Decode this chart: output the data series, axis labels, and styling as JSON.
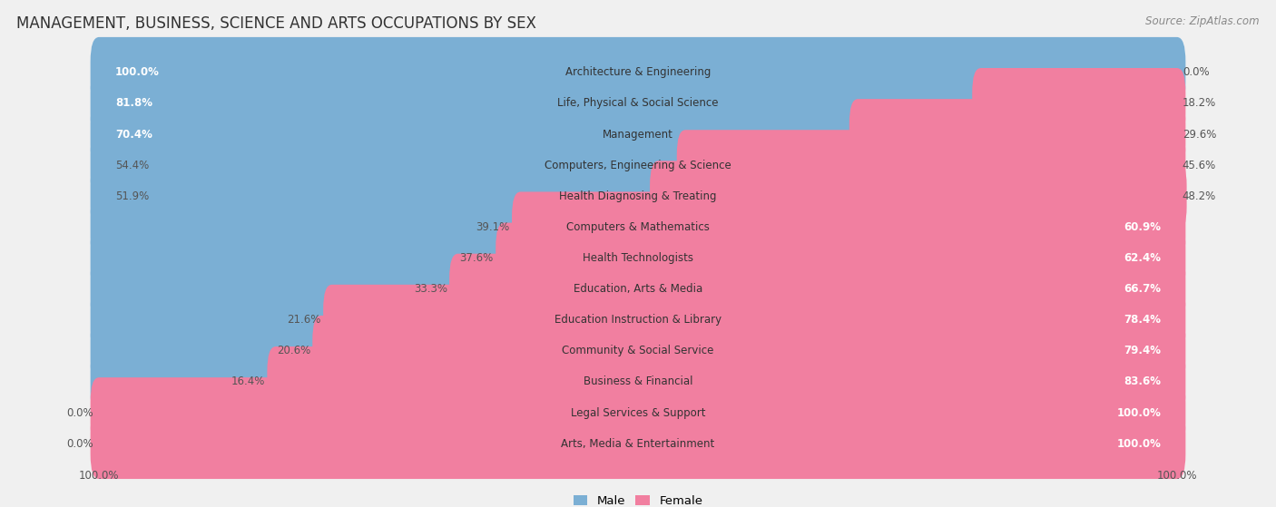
{
  "title": "MANAGEMENT, BUSINESS, SCIENCE AND ARTS OCCUPATIONS BY SEX",
  "source": "Source: ZipAtlas.com",
  "categories": [
    "Architecture & Engineering",
    "Life, Physical & Social Science",
    "Management",
    "Computers, Engineering & Science",
    "Health Diagnosing & Treating",
    "Computers & Mathematics",
    "Health Technologists",
    "Education, Arts & Media",
    "Education Instruction & Library",
    "Community & Social Service",
    "Business & Financial",
    "Legal Services & Support",
    "Arts, Media & Entertainment"
  ],
  "male": [
    100.0,
    81.8,
    70.4,
    54.4,
    51.9,
    39.1,
    37.6,
    33.3,
    21.6,
    20.6,
    16.4,
    0.0,
    0.0
  ],
  "female": [
    0.0,
    18.2,
    29.6,
    45.6,
    48.2,
    60.9,
    62.4,
    66.7,
    78.4,
    79.4,
    83.6,
    100.0,
    100.0
  ],
  "male_color": "#7bafd4",
  "female_color": "#f17fa0",
  "background_color": "#f0f0f0",
  "bar_bg_color": "#ffffff",
  "bar_height": 0.68,
  "title_fontsize": 12,
  "source_fontsize": 8.5,
  "label_fontsize": 8.5,
  "category_fontsize": 8.5
}
